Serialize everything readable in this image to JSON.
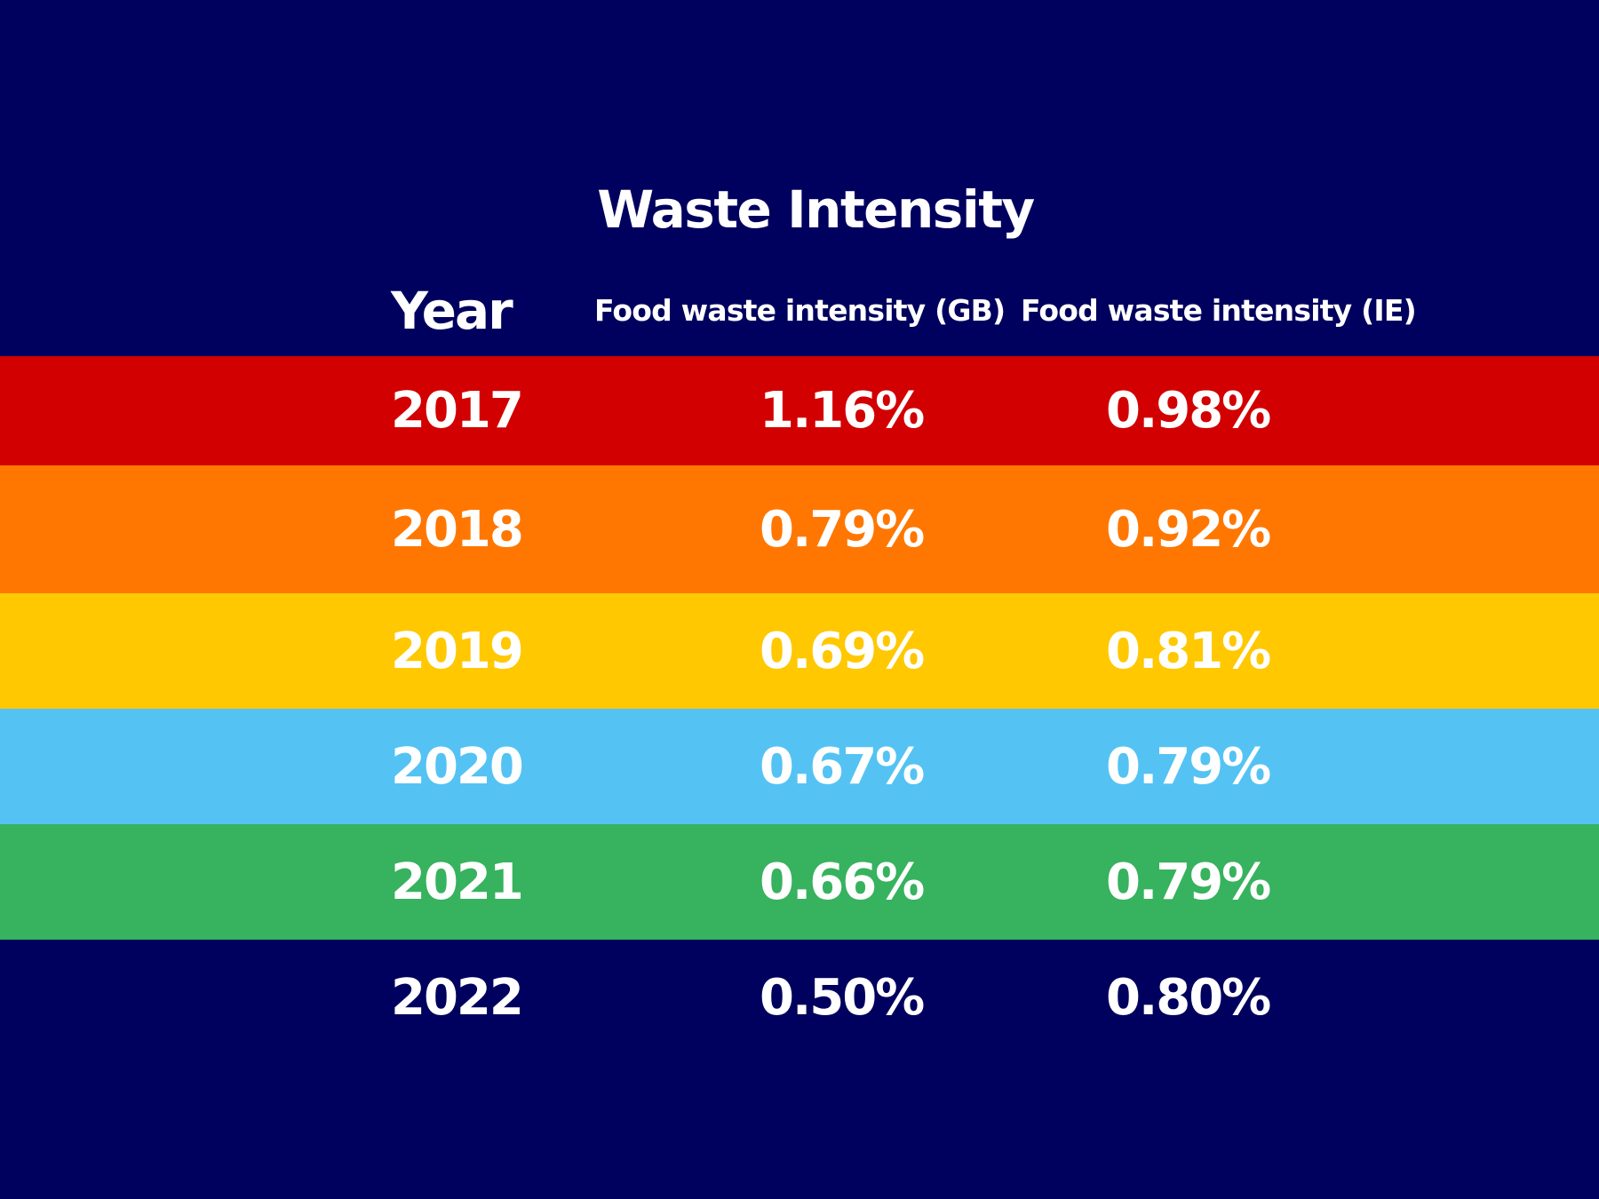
{
  "title": "Waste Intensity",
  "chart_data": {
    "type": "table",
    "title": "Waste Intensity",
    "columns": [
      "Year",
      "Food waste intensity (GB)",
      "Food waste intensity (IE)"
    ],
    "rows": [
      {
        "year": "2017",
        "gb": "1.16%",
        "ie": "0.98%",
        "color": "#d20000"
      },
      {
        "year": "2018",
        "gb": "0.79%",
        "ie": "0.92%",
        "color": "#ff7700"
      },
      {
        "year": "2019",
        "gb": "0.69%",
        "ie": "0.81%",
        "color": "#ffc800"
      },
      {
        "year": "2020",
        "gb": "0.67%",
        "ie": "0.79%",
        "color": "#54c3f3"
      },
      {
        "year": "2021",
        "gb": "0.66%",
        "ie": "0.79%",
        "color": "#37b25e"
      },
      {
        "year": "2022",
        "gb": "0.50%",
        "ie": "0.80%",
        "color": "#00005e"
      }
    ]
  },
  "colors": {
    "background": "#00005e",
    "text": "#ffffff"
  }
}
